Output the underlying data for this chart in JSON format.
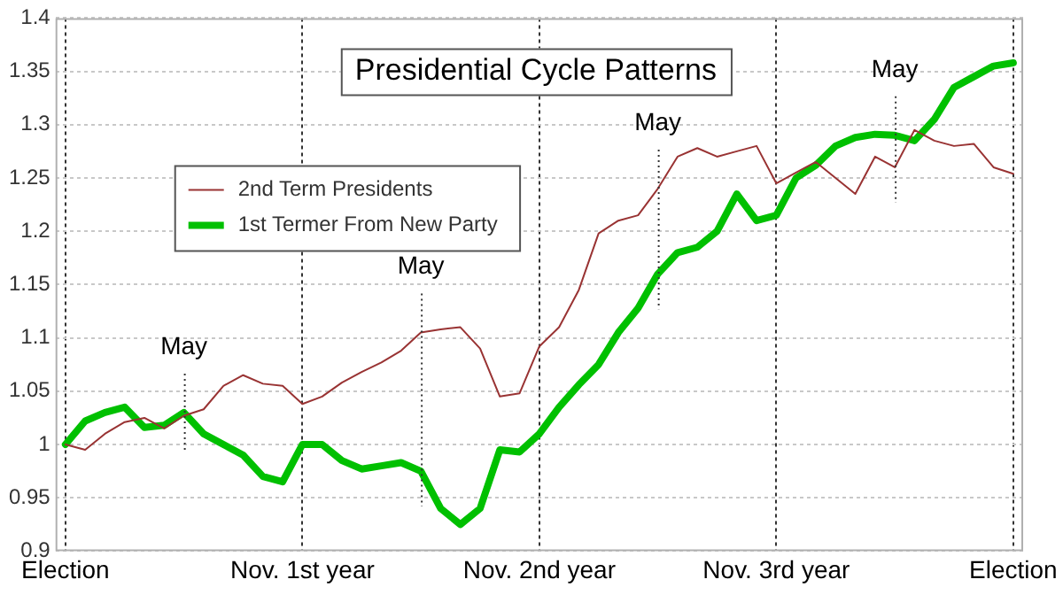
{
  "chart_data": {
    "type": "line",
    "title": "Presidential Cycle Patterns",
    "categories": [
      "Election",
      null,
      null,
      null,
      null,
      null,
      null,
      null,
      null,
      null,
      null,
      null,
      "Nov. 1st year",
      null,
      null,
      null,
      null,
      null,
      null,
      null,
      null,
      null,
      null,
      null,
      "Nov. 2nd year",
      null,
      null,
      null,
      null,
      null,
      null,
      null,
      null,
      null,
      null,
      null,
      "Nov. 3rd year",
      null,
      null,
      null,
      null,
      null,
      null,
      null,
      null,
      null,
      null,
      null,
      "Election"
    ],
    "ylim": [
      0.9,
      1.4
    ],
    "yticks": [
      0.9,
      0.95,
      1,
      1.05,
      1.1,
      1.15,
      1.2,
      1.25,
      1.3,
      1.35,
      1.4
    ],
    "grid": true,
    "legend": "top left",
    "marker": "none",
    "line_style": "solid",
    "series": [
      {
        "name": "2nd Term Presidents",
        "color": "#993333",
        "values": [
          1.0,
          0.995,
          1.01,
          1.021,
          1.025,
          1.015,
          1.027,
          1.033,
          1.055,
          1.065,
          1.057,
          1.055,
          1.038,
          1.045,
          1.058,
          1.068,
          1.077,
          1.088,
          1.105,
          1.108,
          1.11,
          1.09,
          1.045,
          1.048,
          1.092,
          1.11,
          1.145,
          1.198,
          1.21,
          1.215,
          1.24,
          1.27,
          1.278,
          1.27,
          1.275,
          1.28,
          1.245,
          1.255,
          1.265,
          1.25,
          1.235,
          1.27,
          1.26,
          1.295,
          1.285,
          1.28,
          1.282,
          1.26,
          1.254
        ]
      },
      {
        "name": "1st Termer From New Party",
        "color": "#00c000",
        "values": [
          1.0,
          1.022,
          1.03,
          1.035,
          1.016,
          1.018,
          1.03,
          1.01,
          1.0,
          0.99,
          0.97,
          0.965,
          1.0,
          1.0,
          0.985,
          0.977,
          0.98,
          0.983,
          0.975,
          0.94,
          0.925,
          0.94,
          0.995,
          0.993,
          1.01,
          1.035,
          1.056,
          1.075,
          1.105,
          1.128,
          1.16,
          1.18,
          1.185,
          1.2,
          1.235,
          1.21,
          1.215,
          1.25,
          1.262,
          1.28,
          1.288,
          1.291,
          1.29,
          1.285,
          1.305,
          1.335,
          1.345,
          1.355,
          1.358
        ]
      }
    ],
    "annotations": [
      "May",
      "May",
      "May",
      "May"
    ]
  }
}
